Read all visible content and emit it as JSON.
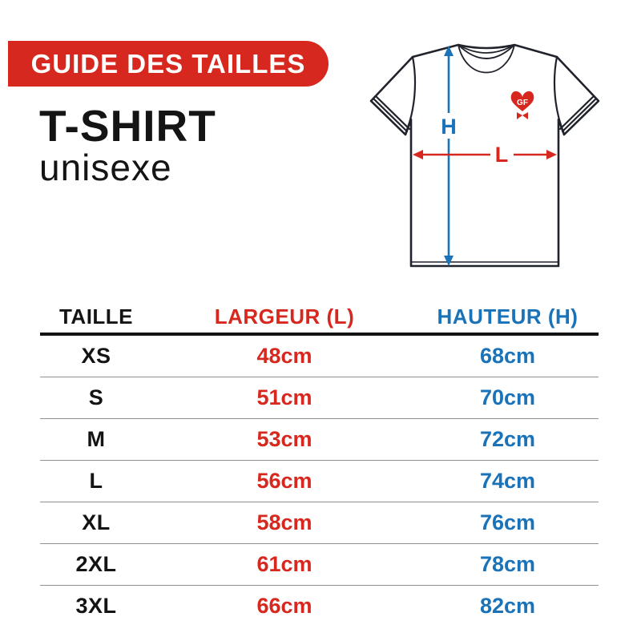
{
  "colors": {
    "red": "#d6281f",
    "blue": "#1a72b8",
    "ink": "#141414",
    "outline": "#20222c",
    "separator": "#919191"
  },
  "badge": {
    "label": "GUIDE DES TAILLES"
  },
  "product": {
    "title": "T-SHIRT",
    "subtitle": "unisexe"
  },
  "diagram": {
    "height_label": "H",
    "width_label": "L",
    "logo_text": "GF"
  },
  "size_table": {
    "columns": [
      {
        "label": "TAILLE"
      },
      {
        "label": "LARGEUR (L)"
      },
      {
        "label": "HAUTEUR (H)"
      }
    ],
    "rows": [
      {
        "size": "XS",
        "largeur": "48cm",
        "hauteur": "68cm"
      },
      {
        "size": "S",
        "largeur": "51cm",
        "hauteur": "70cm"
      },
      {
        "size": "M",
        "largeur": "53cm",
        "hauteur": "72cm"
      },
      {
        "size": "L",
        "largeur": "56cm",
        "hauteur": "74cm"
      },
      {
        "size": "XL",
        "largeur": "58cm",
        "hauteur": "76cm"
      },
      {
        "size": "2XL",
        "largeur": "61cm",
        "hauteur": "78cm"
      },
      {
        "size": "3XL",
        "largeur": "66cm",
        "hauteur": "82cm"
      }
    ]
  }
}
